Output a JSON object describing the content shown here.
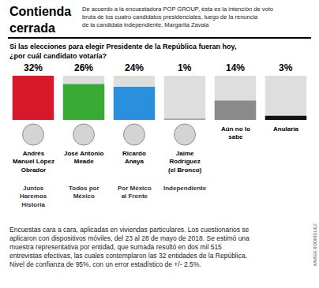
{
  "chart_data": {
    "type": "bar",
    "title": "Contienda cerrada",
    "subtitle": "De acuerdo a la encuestadora POP GROUP, ésta es la intención de voto bruta de los cuatro candidatos presidenciales, luego de la renuncia de la candidata independiente, Margarita Zavala",
    "categories": [
      "Andrés Manuel López Obrador",
      "José Antonio Meade",
      "Ricardo Anaya",
      "Jaime Rodríguez (el Bronco)",
      "Aún no lo sabe",
      "Anularía"
    ],
    "coalitions": [
      "Juntos Haremos Historia",
      "Todos por México",
      "Por México al Frente",
      "Independiente",
      null,
      null
    ],
    "values": [
      32,
      26,
      24,
      1,
      14,
      3
    ],
    "value_labels": [
      "32%",
      "26%",
      "24%",
      "1%",
      "14%",
      "3%"
    ],
    "colors": [
      "#d7192a",
      "#3aaa35",
      "#2a8fdc",
      "#a6a6a6",
      "#8a8a8a",
      "#111111"
    ],
    "ylim": [
      0,
      32
    ],
    "grid": false,
    "data_labels": true,
    "tick_labels": false,
    "annotations": {
      "question": "Si las elecciones para elegir Presidente de la República fueran hoy, ¿por cuál candidato votaría?",
      "footnote": "Encuestas cara a cara, aplicadas en viviendas particulares. Los cuestionarios se aplicaron con dispositivos móviles, del 23 al 28 de mayo de 2018. Se estimó una muestra representativa por entidad, que sumada resultó en dos mil 515 entrevistas efectivas, las cuales contemplaron las 32 entidades de la República. Nivel de confianza de 95%, con un error estadístico de +/- 2.5%.",
      "credit": "XAVIER RODRÍGUEZ"
    }
  }
}
